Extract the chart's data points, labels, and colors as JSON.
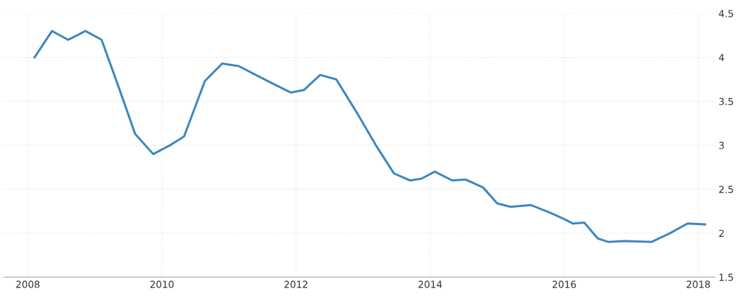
{
  "chart_data": {
    "type": "line",
    "x": [
      2008.1,
      2008.36,
      2008.6,
      2008.86,
      2009.1,
      2009.36,
      2009.6,
      2009.87,
      2010.12,
      2010.33,
      2010.64,
      2010.9,
      2011.15,
      2011.4,
      2011.66,
      2011.92,
      2012.12,
      2012.36,
      2012.6,
      2012.9,
      2013.2,
      2013.46,
      2013.7,
      2013.87,
      2014.07,
      2014.33,
      2014.53,
      2014.79,
      2015.0,
      2015.2,
      2015.5,
      2015.77,
      2016.0,
      2016.13,
      2016.3,
      2016.5,
      2016.66,
      2016.9,
      2017.3,
      2017.58,
      2017.84,
      2018.1
    ],
    "series": [
      {
        "color": "#3a87c0",
        "values": [
          4.0,
          4.3,
          4.2,
          4.3,
          4.2,
          3.65,
          3.13,
          2.9,
          3.0,
          3.1,
          3.73,
          3.93,
          3.9,
          3.8,
          3.7,
          3.6,
          3.63,
          3.8,
          3.75,
          3.38,
          2.99,
          2.68,
          2.6,
          2.62,
          2.7,
          2.6,
          2.61,
          2.52,
          2.34,
          2.3,
          2.32,
          2.24,
          2.16,
          2.11,
          2.12,
          1.94,
          1.9,
          1.91,
          1.9,
          2.0,
          2.11,
          2.1
        ]
      }
    ],
    "xlim": [
      2007.64,
      2018.25
    ],
    "ylim": [
      1.5,
      4.5
    ],
    "xticks": [
      2008,
      2010,
      2012,
      2014,
      2016,
      2018
    ],
    "yticks": [
      1.5,
      2,
      2.5,
      3,
      3.5,
      4,
      4.5
    ],
    "grid": true,
    "marker": "none",
    "line_style": "solid"
  }
}
